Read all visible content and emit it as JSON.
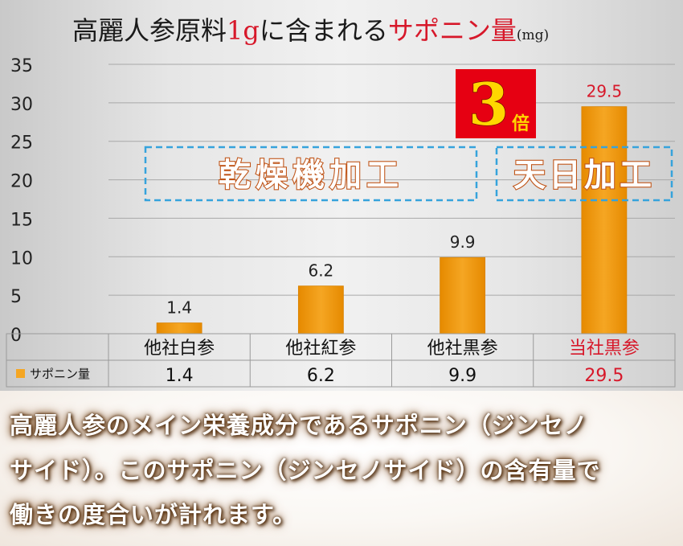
{
  "chart_data": {
    "type": "bar",
    "title_main": "高麗人参原料",
    "title_unit_amount": "1g",
    "title_mid": "に含まれる",
    "title_highlight": "サポニン量",
    "title_unit": "(mg)",
    "categories": [
      "他社白参",
      "他社紅参",
      "他社黒参",
      "当社黒参"
    ],
    "series": [
      {
        "name": "サポニン量",
        "values": [
          1.4,
          6.2,
          9.9,
          29.5
        ]
      }
    ],
    "data_labels": [
      "1.4",
      "6.2",
      "9.9",
      "29.5"
    ],
    "ylim": [
      0,
      35
    ],
    "yticks": [
      0,
      5,
      10,
      15,
      20,
      25,
      30,
      35
    ],
    "grid": true,
    "highlight_index": 3,
    "annotations": {
      "badge_number": "3",
      "badge_suffix": "倍",
      "group_left": "乾燥機加工",
      "group_right": "天日加工"
    },
    "colors": {
      "bar": "#f5a623",
      "bar_dark": "#e68a00",
      "highlight_text": "#d7182a",
      "badge_bg": "#e60012",
      "badge_text": "#ffd700",
      "dash_box": "#36a3dc",
      "group_text": "#ffffff",
      "group_outline": "#c0561a"
    }
  },
  "caption": {
    "lines": [
      "高麗人参のメイン栄養成分であるサポニン（ジンセノ",
      "サイド）。このサポニン（ジンセノサイド）の含有量で",
      "働きの度合いが計れます。"
    ]
  }
}
